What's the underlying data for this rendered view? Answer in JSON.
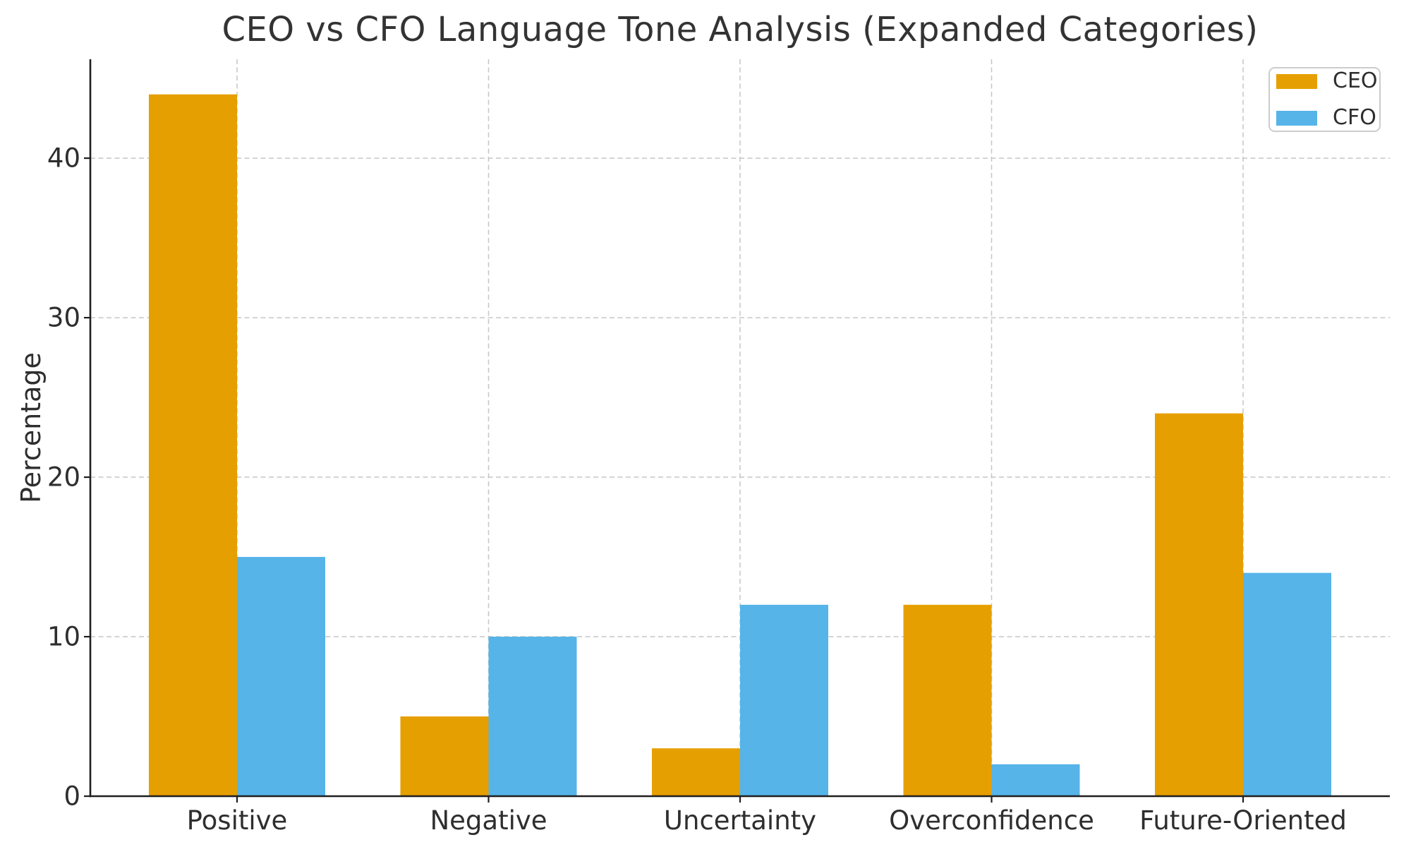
{
  "figure": {
    "background": "#ffffff"
  },
  "chart_data": {
    "type": "bar",
    "title": "CEO vs CFO Language Tone Analysis (Expanded Categories)",
    "xlabel": "",
    "ylabel": "Percentage",
    "categories": [
      "Positive",
      "Negative",
      "Uncertainty",
      "Overconfidence",
      "Future-Oriented"
    ],
    "series": [
      {
        "name": "CEO",
        "color": "#E69F00",
        "values": [
          44,
          5,
          3,
          12,
          24
        ]
      },
      {
        "name": "CFO",
        "color": "#56B4E9",
        "values": [
          15,
          10,
          12,
          2,
          14
        ]
      }
    ],
    "yticks": [
      0,
      10,
      20,
      30,
      40
    ],
    "ylim": [
      0,
      46.2
    ],
    "grid": {
      "axis": "both",
      "style": "dashed",
      "color": "#c6c6c6"
    },
    "legend": {
      "position": "upper right",
      "labels": [
        "CEO",
        "CFO"
      ]
    },
    "axis_color": "#1f1f1f",
    "text_color": "#2e2e2e"
  }
}
